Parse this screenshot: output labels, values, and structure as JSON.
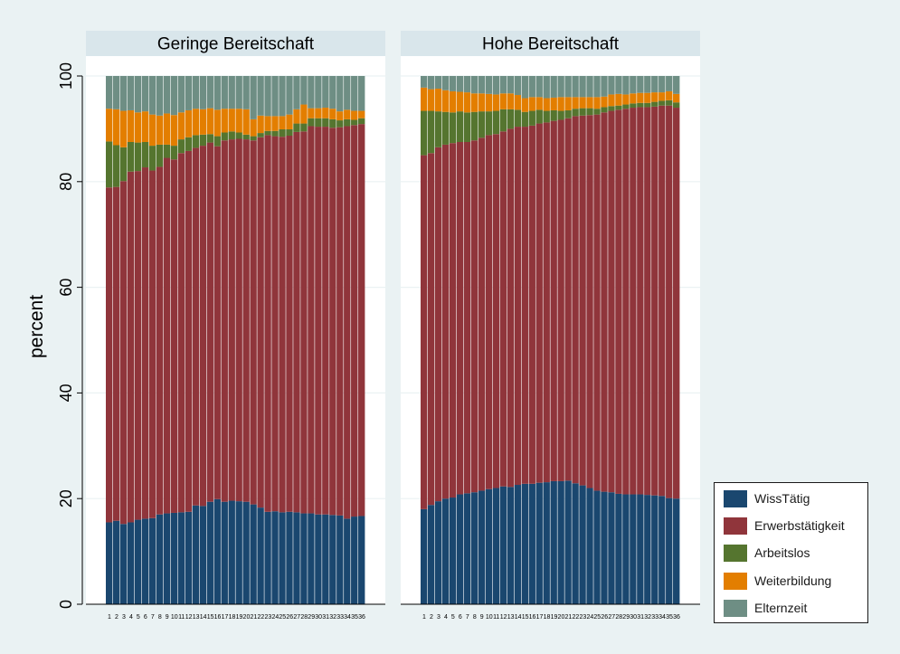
{
  "chart_data": {
    "type": "bar",
    "stacked": true,
    "ylabel": "percent",
    "ylim": [
      0,
      100
    ],
    "yticks": [
      0,
      20,
      40,
      60,
      80,
      100
    ],
    "grid": true,
    "legend_position": "bottom-right",
    "categories": [
      "1",
      "2",
      "3",
      "4",
      "5",
      "6",
      "7",
      "8",
      "9",
      "10",
      "11",
      "12",
      "13",
      "14",
      "15",
      "16",
      "17",
      "18",
      "19",
      "20",
      "21",
      "22",
      "23",
      "24",
      "25",
      "26",
      "27",
      "28",
      "29",
      "30",
      "31",
      "32",
      "33",
      "34",
      "35",
      "36"
    ],
    "series_names": [
      "WissTätig",
      "Erwerbstätigkeit",
      "Arbeitslos",
      "Weiterbildung",
      "Elternzeit"
    ],
    "colors": [
      "#1a476f",
      "#90353b",
      "#55752f",
      "#e37e00",
      "#6e8e84"
    ],
    "panels": [
      {
        "title": "Geringe Bereitschaft",
        "series": [
          {
            "name": "WissTätig",
            "values": [
              15.5,
              15.8,
              15.2,
              15.5,
              16.0,
              16.2,
              16.3,
              17.0,
              17.2,
              17.3,
              17.4,
              17.5,
              18.7,
              18.6,
              19.4,
              19.9,
              19.4,
              19.6,
              19.5,
              19.4,
              18.9,
              18.3,
              17.5,
              17.6,
              17.4,
              17.5,
              17.4,
              17.2,
              17.2,
              17.0,
              17.0,
              16.9,
              16.8,
              16.2,
              16.6,
              16.7
            ]
          },
          {
            "name": "Erwerbstätigkeit",
            "values": [
              63.4,
              63.2,
              64.9,
              66.4,
              66.0,
              66.5,
              65.8,
              65.8,
              67.3,
              66.9,
              68.0,
              68.3,
              67.7,
              68.2,
              68.0,
              66.8,
              68.4,
              68.4,
              68.6,
              68.6,
              68.9,
              70.1,
              71.3,
              71.0,
              71.1,
              71.2,
              72.0,
              72.3,
              73.3,
              73.4,
              73.4,
              73.3,
              73.5,
              74.3,
              74.1,
              74.2
            ]
          },
          {
            "name": "Arbeitslos",
            "values": [
              8.7,
              7.9,
              6.4,
              5.6,
              5.4,
              4.8,
              4.7,
              4.2,
              2.5,
              2.6,
              2.6,
              2.6,
              2.4,
              2.1,
              1.6,
              1.9,
              1.5,
              1.5,
              1.2,
              0.9,
              0.8,
              0.8,
              0.8,
              1.0,
              1.4,
              1.2,
              1.6,
              1.5,
              1.5,
              1.6,
              1.6,
              1.6,
              1.3,
              1.3,
              1.0,
              1.1
            ]
          },
          {
            "name": "Weiterbildung",
            "values": [
              6.2,
              6.8,
              6.9,
              6.0,
              5.7,
              5.8,
              5.9,
              5.5,
              5.9,
              5.8,
              5.1,
              5.1,
              5.0,
              4.8,
              4.9,
              5.0,
              4.5,
              4.3,
              4.5,
              4.8,
              3.2,
              3.3,
              2.8,
              2.8,
              2.5,
              2.8,
              2.7,
              3.6,
              1.9,
              1.9,
              2.0,
              2.0,
              1.7,
              1.8,
              1.7,
              1.4
            ]
          },
          {
            "name": "Elternzeit",
            "values": [
              6.2,
              6.3,
              6.6,
              6.5,
              6.9,
              6.7,
              7.3,
              7.5,
              7.1,
              7.4,
              6.9,
              6.5,
              6.2,
              6.3,
              6.1,
              6.4,
              6.2,
              6.2,
              6.2,
              6.3,
              8.2,
              7.5,
              7.6,
              7.6,
              7.6,
              7.3,
              6.3,
              5.4,
              6.1,
              6.1,
              6.0,
              6.2,
              6.7,
              6.4,
              6.6,
              6.6
            ]
          }
        ]
      },
      {
        "title": "Hohe Bereitschaft",
        "series": [
          {
            "name": "WissTätig",
            "values": [
              18.0,
              18.8,
              19.5,
              20.0,
              20.2,
              20.8,
              21.0,
              21.2,
              21.5,
              21.8,
              22.0,
              22.3,
              22.2,
              22.6,
              22.8,
              22.8,
              23.0,
              23.1,
              23.3,
              23.3,
              23.4,
              22.9,
              22.5,
              22.0,
              21.5,
              21.3,
              21.2,
              20.9,
              20.8,
              20.8,
              20.8,
              20.7,
              20.6,
              20.5,
              20.1,
              20.0
            ]
          },
          {
            "name": "Erwerbstätigkeit",
            "values": [
              67.0,
              66.6,
              67.0,
              67.0,
              67.1,
              66.7,
              66.5,
              66.6,
              66.8,
              67.0,
              67.0,
              67.2,
              67.8,
              67.8,
              67.6,
              67.8,
              68.0,
              68.1,
              68.2,
              68.4,
              68.6,
              69.5,
              70.0,
              70.6,
              71.2,
              71.8,
              72.2,
              72.7,
              73.0,
              73.2,
              73.3,
              73.4,
              73.6,
              73.9,
              74.3,
              74.0
            ]
          },
          {
            "name": "Arbeitslos",
            "values": [
              8.4,
              8.0,
              6.8,
              6.2,
              5.8,
              5.8,
              5.6,
              5.4,
              5.0,
              4.5,
              4.4,
              4.2,
              3.7,
              3.2,
              2.8,
              2.8,
              2.6,
              2.2,
              2.0,
              1.7,
              1.5,
              1.4,
              1.4,
              1.3,
              1.1,
              1.0,
              0.9,
              0.8,
              0.8,
              0.8,
              0.8,
              0.8,
              0.9,
              0.9,
              1.0,
              1.0
            ]
          },
          {
            "name": "Weiterbildung",
            "values": [
              4.4,
              4.1,
              4.3,
              4.1,
              4.0,
              3.7,
              3.8,
              3.5,
              3.4,
              3.3,
              3.1,
              3.0,
              3.0,
              2.8,
              2.6,
              2.6,
              2.4,
              2.4,
              2.4,
              2.6,
              2.5,
              2.2,
              2.1,
              2.1,
              2.2,
              2.0,
              2.2,
              2.2,
              1.9,
              1.9,
              1.9,
              1.9,
              1.8,
              1.6,
              1.7,
              1.6
            ]
          },
          {
            "name": "Elternzeit",
            "values": [
              2.2,
              2.5,
              2.4,
              2.7,
              2.9,
              3.0,
              3.1,
              3.3,
              3.3,
              3.4,
              3.5,
              3.3,
              3.3,
              3.6,
              4.2,
              4.0,
              4.0,
              4.2,
              4.1,
              4.0,
              4.0,
              4.0,
              4.0,
              4.0,
              4.0,
              3.9,
              3.5,
              3.4,
              3.5,
              3.3,
              3.2,
              3.2,
              3.1,
              3.1,
              2.9,
              3.4
            ]
          }
        ]
      }
    ]
  }
}
